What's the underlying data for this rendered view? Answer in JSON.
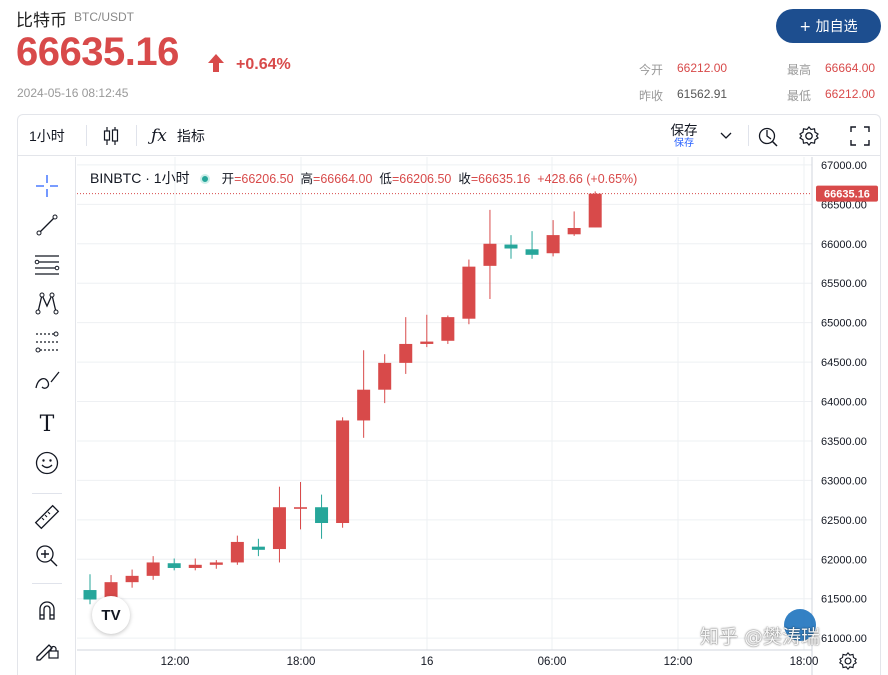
{
  "header": {
    "name": "比特币",
    "pair": "BTC/USDT",
    "price": "66635.16",
    "change": "+0.64%",
    "timestamp": "2024-05-16 08:12:45",
    "add_button": "+ 加自选",
    "stats": {
      "open_label": "今开",
      "open_value": "66212.00",
      "high_label": "最高",
      "high_value": "66664.00",
      "prev_close_label": "昨收",
      "prev_close_value": "61562.91",
      "low_label": "最低",
      "low_value": "66212.00"
    },
    "colors": {
      "up": "#d84a4a",
      "down": "#26a69a",
      "accent": "#1d4e8f"
    }
  },
  "toolbar": {
    "interval": "1小时",
    "indicators_label": "指标",
    "save_label": "保存",
    "save_sub": "保存",
    "icons": [
      "candles-icon",
      "fx-icon",
      "chevron-down-icon",
      "replay-icon",
      "gear-icon",
      "fullscreen-icon"
    ]
  },
  "sidebar": {
    "tools": [
      "crosshair-icon",
      "trendline-icon",
      "horizontal-lines-icon",
      "pattern-icon",
      "fib-icon",
      "brush-icon",
      "text-icon",
      "emoji-icon",
      "ruler-icon",
      "zoom-icon",
      "magnet-icon",
      "lock-pencil-icon"
    ]
  },
  "legend": {
    "symbol": "BINBTC · 1小时",
    "open_label": "开",
    "open": "66206.50",
    "high_label": "高",
    "high": "66664.00",
    "low_label": "低",
    "low": "66206.50",
    "close_label": "收",
    "close": "66635.16",
    "change": "+428.66 (+0.65%)"
  },
  "watermark": "知乎 @樊涛瑞",
  "chart_data": {
    "type": "candlestick",
    "title": "",
    "interval": "1小时",
    "x_ticks": [
      "12:00",
      "18:00",
      "16",
      "06:00",
      "12:00",
      "18:00"
    ],
    "y_ticks": [
      61000,
      61500,
      62000,
      62500,
      63000,
      63500,
      64000,
      64500,
      65000,
      65500,
      66000,
      66500,
      67000
    ],
    "ylim": [
      60850,
      67100
    ],
    "last_price": 66635.16,
    "last_price_label": "66635.16",
    "grid": true,
    "candles": [
      {
        "o": 61610,
        "h": 61810,
        "l": 61430,
        "c": 61490
      },
      {
        "o": 61490,
        "h": 61800,
        "l": 61380,
        "c": 61710
      },
      {
        "o": 61710,
        "h": 61870,
        "l": 61640,
        "c": 61790
      },
      {
        "o": 61790,
        "h": 62040,
        "l": 61740,
        "c": 61960
      },
      {
        "o": 61950,
        "h": 62010,
        "l": 61860,
        "c": 61890
      },
      {
        "o": 61890,
        "h": 62010,
        "l": 61860,
        "c": 61930
      },
      {
        "o": 61930,
        "h": 61990,
        "l": 61880,
        "c": 61960
      },
      {
        "o": 61960,
        "h": 62300,
        "l": 61930,
        "c": 62220
      },
      {
        "o": 62160,
        "h": 62260,
        "l": 62040,
        "c": 62120
      },
      {
        "o": 62130,
        "h": 62920,
        "l": 61960,
        "c": 62660
      },
      {
        "o": 62640,
        "h": 62980,
        "l": 62380,
        "c": 62660
      },
      {
        "o": 62660,
        "h": 62820,
        "l": 62260,
        "c": 62460
      },
      {
        "o": 62460,
        "h": 63800,
        "l": 62400,
        "c": 63760
      },
      {
        "o": 63760,
        "h": 64650,
        "l": 63540,
        "c": 64150
      },
      {
        "o": 64150,
        "h": 64600,
        "l": 63980,
        "c": 64490
      },
      {
        "o": 64490,
        "h": 65070,
        "l": 64350,
        "c": 64730
      },
      {
        "o": 64730,
        "h": 65100,
        "l": 64690,
        "c": 64760
      },
      {
        "o": 64770,
        "h": 65090,
        "l": 64730,
        "c": 65070
      },
      {
        "o": 65050,
        "h": 65800,
        "l": 64980,
        "c": 65710
      },
      {
        "o": 65720,
        "h": 66430,
        "l": 65300,
        "c": 66000
      },
      {
        "o": 65990,
        "h": 66110,
        "l": 65810,
        "c": 65940
      },
      {
        "o": 65930,
        "h": 66160,
        "l": 65810,
        "c": 65860
      },
      {
        "o": 65880,
        "h": 66300,
        "l": 65840,
        "c": 66110
      },
      {
        "o": 66120,
        "h": 66410,
        "l": 66100,
        "c": 66200
      },
      {
        "o": 66206.5,
        "h": 66664,
        "l": 66206.5,
        "c": 66635.16
      }
    ]
  }
}
